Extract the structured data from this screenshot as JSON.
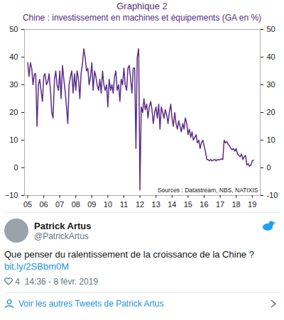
{
  "chart_data": {
    "type": "line",
    "title": "Graphique 2",
    "subtitle": "Chine : investissement en machines et équipements (GA en %)",
    "source": "Sources : Datastream, NBS, NATIXIS",
    "color": "#5b2d86",
    "grid": false,
    "xlim": [
      2004.8,
      2019.5
    ],
    "xticks": [
      {
        "value": 2005,
        "label": "05"
      },
      {
        "value": 2006,
        "label": "06"
      },
      {
        "value": 2007,
        "label": "07"
      },
      {
        "value": 2008,
        "label": "08"
      },
      {
        "value": 2009,
        "label": "09"
      },
      {
        "value": 2010,
        "label": "10"
      },
      {
        "value": 2011,
        "label": "11"
      },
      {
        "value": 2012,
        "label": "12"
      },
      {
        "value": 2013,
        "label": "13"
      },
      {
        "value": 2014,
        "label": "14"
      },
      {
        "value": 2015,
        "label": "15"
      },
      {
        "value": 2016,
        "label": "16"
      },
      {
        "value": 2017,
        "label": "17"
      },
      {
        "value": 2018,
        "label": "18"
      },
      {
        "value": 2019,
        "label": "19"
      }
    ],
    "ylim": [
      -10,
      50
    ],
    "yticks": [
      -10,
      0,
      10,
      20,
      30,
      40,
      50
    ],
    "y2lim": [
      -10,
      50
    ],
    "y2ticks": [
      -10,
      0,
      10,
      20,
      30,
      40,
      50
    ],
    "x": [
      2005.0,
      2005.08,
      2005.17,
      2005.25,
      2005.33,
      2005.42,
      2005.5,
      2005.58,
      2005.67,
      2005.75,
      2005.83,
      2005.92,
      2006.0,
      2006.08,
      2006.17,
      2006.25,
      2006.33,
      2006.42,
      2006.5,
      2006.58,
      2006.67,
      2006.75,
      2006.83,
      2006.92,
      2007.0,
      2007.08,
      2007.17,
      2007.25,
      2007.33,
      2007.42,
      2007.5,
      2007.58,
      2007.67,
      2007.75,
      2007.83,
      2007.92,
      2008.0,
      2008.08,
      2008.17,
      2008.25,
      2008.33,
      2008.42,
      2008.5,
      2008.58,
      2008.67,
      2008.75,
      2008.83,
      2008.92,
      2009.0,
      2009.08,
      2009.17,
      2009.25,
      2009.33,
      2009.42,
      2009.5,
      2009.58,
      2009.67,
      2009.75,
      2009.83,
      2009.92,
      2010.0,
      2010.08,
      2010.17,
      2010.25,
      2010.33,
      2010.42,
      2010.5,
      2010.58,
      2010.67,
      2010.75,
      2010.83,
      2010.92,
      2011.0,
      2011.08,
      2011.17,
      2011.25,
      2011.33,
      2011.42,
      2011.5,
      2011.58,
      2011.67,
      2011.75,
      2011.83,
      2011.92,
      2012.0,
      2012.08,
      2012.17,
      2012.25,
      2012.33,
      2012.42,
      2012.5,
      2012.58,
      2012.67,
      2012.75,
      2012.83,
      2012.92,
      2013.0,
      2013.08,
      2013.17,
      2013.25,
      2013.33,
      2013.42,
      2013.5,
      2013.58,
      2013.67,
      2013.75,
      2013.83,
      2013.92,
      2014.0,
      2014.08,
      2014.17,
      2014.25,
      2014.33,
      2014.42,
      2014.5,
      2014.58,
      2014.67,
      2014.75,
      2014.83,
      2014.92,
      2015.0,
      2015.08,
      2015.17,
      2015.25,
      2015.33,
      2015.42,
      2015.5,
      2015.58,
      2015.67,
      2015.75,
      2015.83,
      2015.92,
      2016.0,
      2016.08,
      2016.17,
      2016.25,
      2016.33,
      2016.42,
      2016.5,
      2016.58,
      2016.67,
      2016.75,
      2016.83,
      2016.92,
      2017.0,
      2017.08,
      2017.17,
      2017.25,
      2017.33,
      2017.42,
      2017.5,
      2017.58,
      2017.67,
      2017.75,
      2017.83,
      2017.92,
      2018.0,
      2018.08,
      2018.17,
      2018.25,
      2018.33,
      2018.42,
      2018.5,
      2018.58,
      2018.67,
      2018.75,
      2018.83,
      2018.92,
      2019.0,
      2019.08
    ],
    "values": [
      38,
      33,
      38,
      36,
      30,
      34,
      34,
      15,
      30,
      32,
      28,
      24,
      33,
      34,
      30,
      31,
      34,
      28,
      20,
      18,
      32,
      35,
      30,
      28,
      35,
      25,
      37,
      32,
      28,
      22,
      16,
      30,
      33,
      35,
      27,
      34,
      28,
      35,
      32,
      25,
      34,
      38,
      43,
      40,
      35,
      36,
      30,
      33,
      38,
      28,
      35,
      33,
      30,
      28,
      32,
      27,
      35,
      30,
      28,
      30,
      22,
      32,
      28,
      30,
      27,
      33,
      35,
      28,
      30,
      24,
      32,
      30,
      36,
      30,
      28,
      36,
      37,
      32,
      27,
      36,
      36,
      7,
      40,
      43,
      -8,
      22,
      20,
      25,
      21,
      23,
      18,
      22,
      24,
      21,
      16,
      20,
      22,
      18,
      23,
      14,
      22,
      20,
      18,
      21,
      19,
      16,
      20,
      23,
      18,
      15,
      20,
      16,
      14,
      17,
      15,
      13,
      16,
      14,
      18,
      16,
      12,
      14,
      11,
      13,
      10,
      11,
      12,
      9,
      10,
      7,
      9,
      10,
      8,
      6,
      3,
      3,
      2.5,
      3,
      2.5,
      2.8,
      3,
      2.5,
      3,
      2.8,
      3,
      3.2,
      3,
      10,
      9,
      9.5,
      8.5,
      8,
      7,
      6.5,
      7,
      6,
      7,
      5,
      4.5,
      4,
      5,
      3,
      4,
      4.5,
      1,
      1.5,
      0.5,
      1,
      2.5,
      2.8
    ]
  },
  "tweet": {
    "author_name": "Patrick Artus",
    "handle": "@PatrickArtus",
    "text": "Que penser du ralentissement de la croissance de la Chine ?",
    "link": "bit.ly/2SBbm0M",
    "likes": 4,
    "time": "14:36 - 8 févr. 2019",
    "more_link": "Voir les autres Tweets de Patrick Artus"
  }
}
